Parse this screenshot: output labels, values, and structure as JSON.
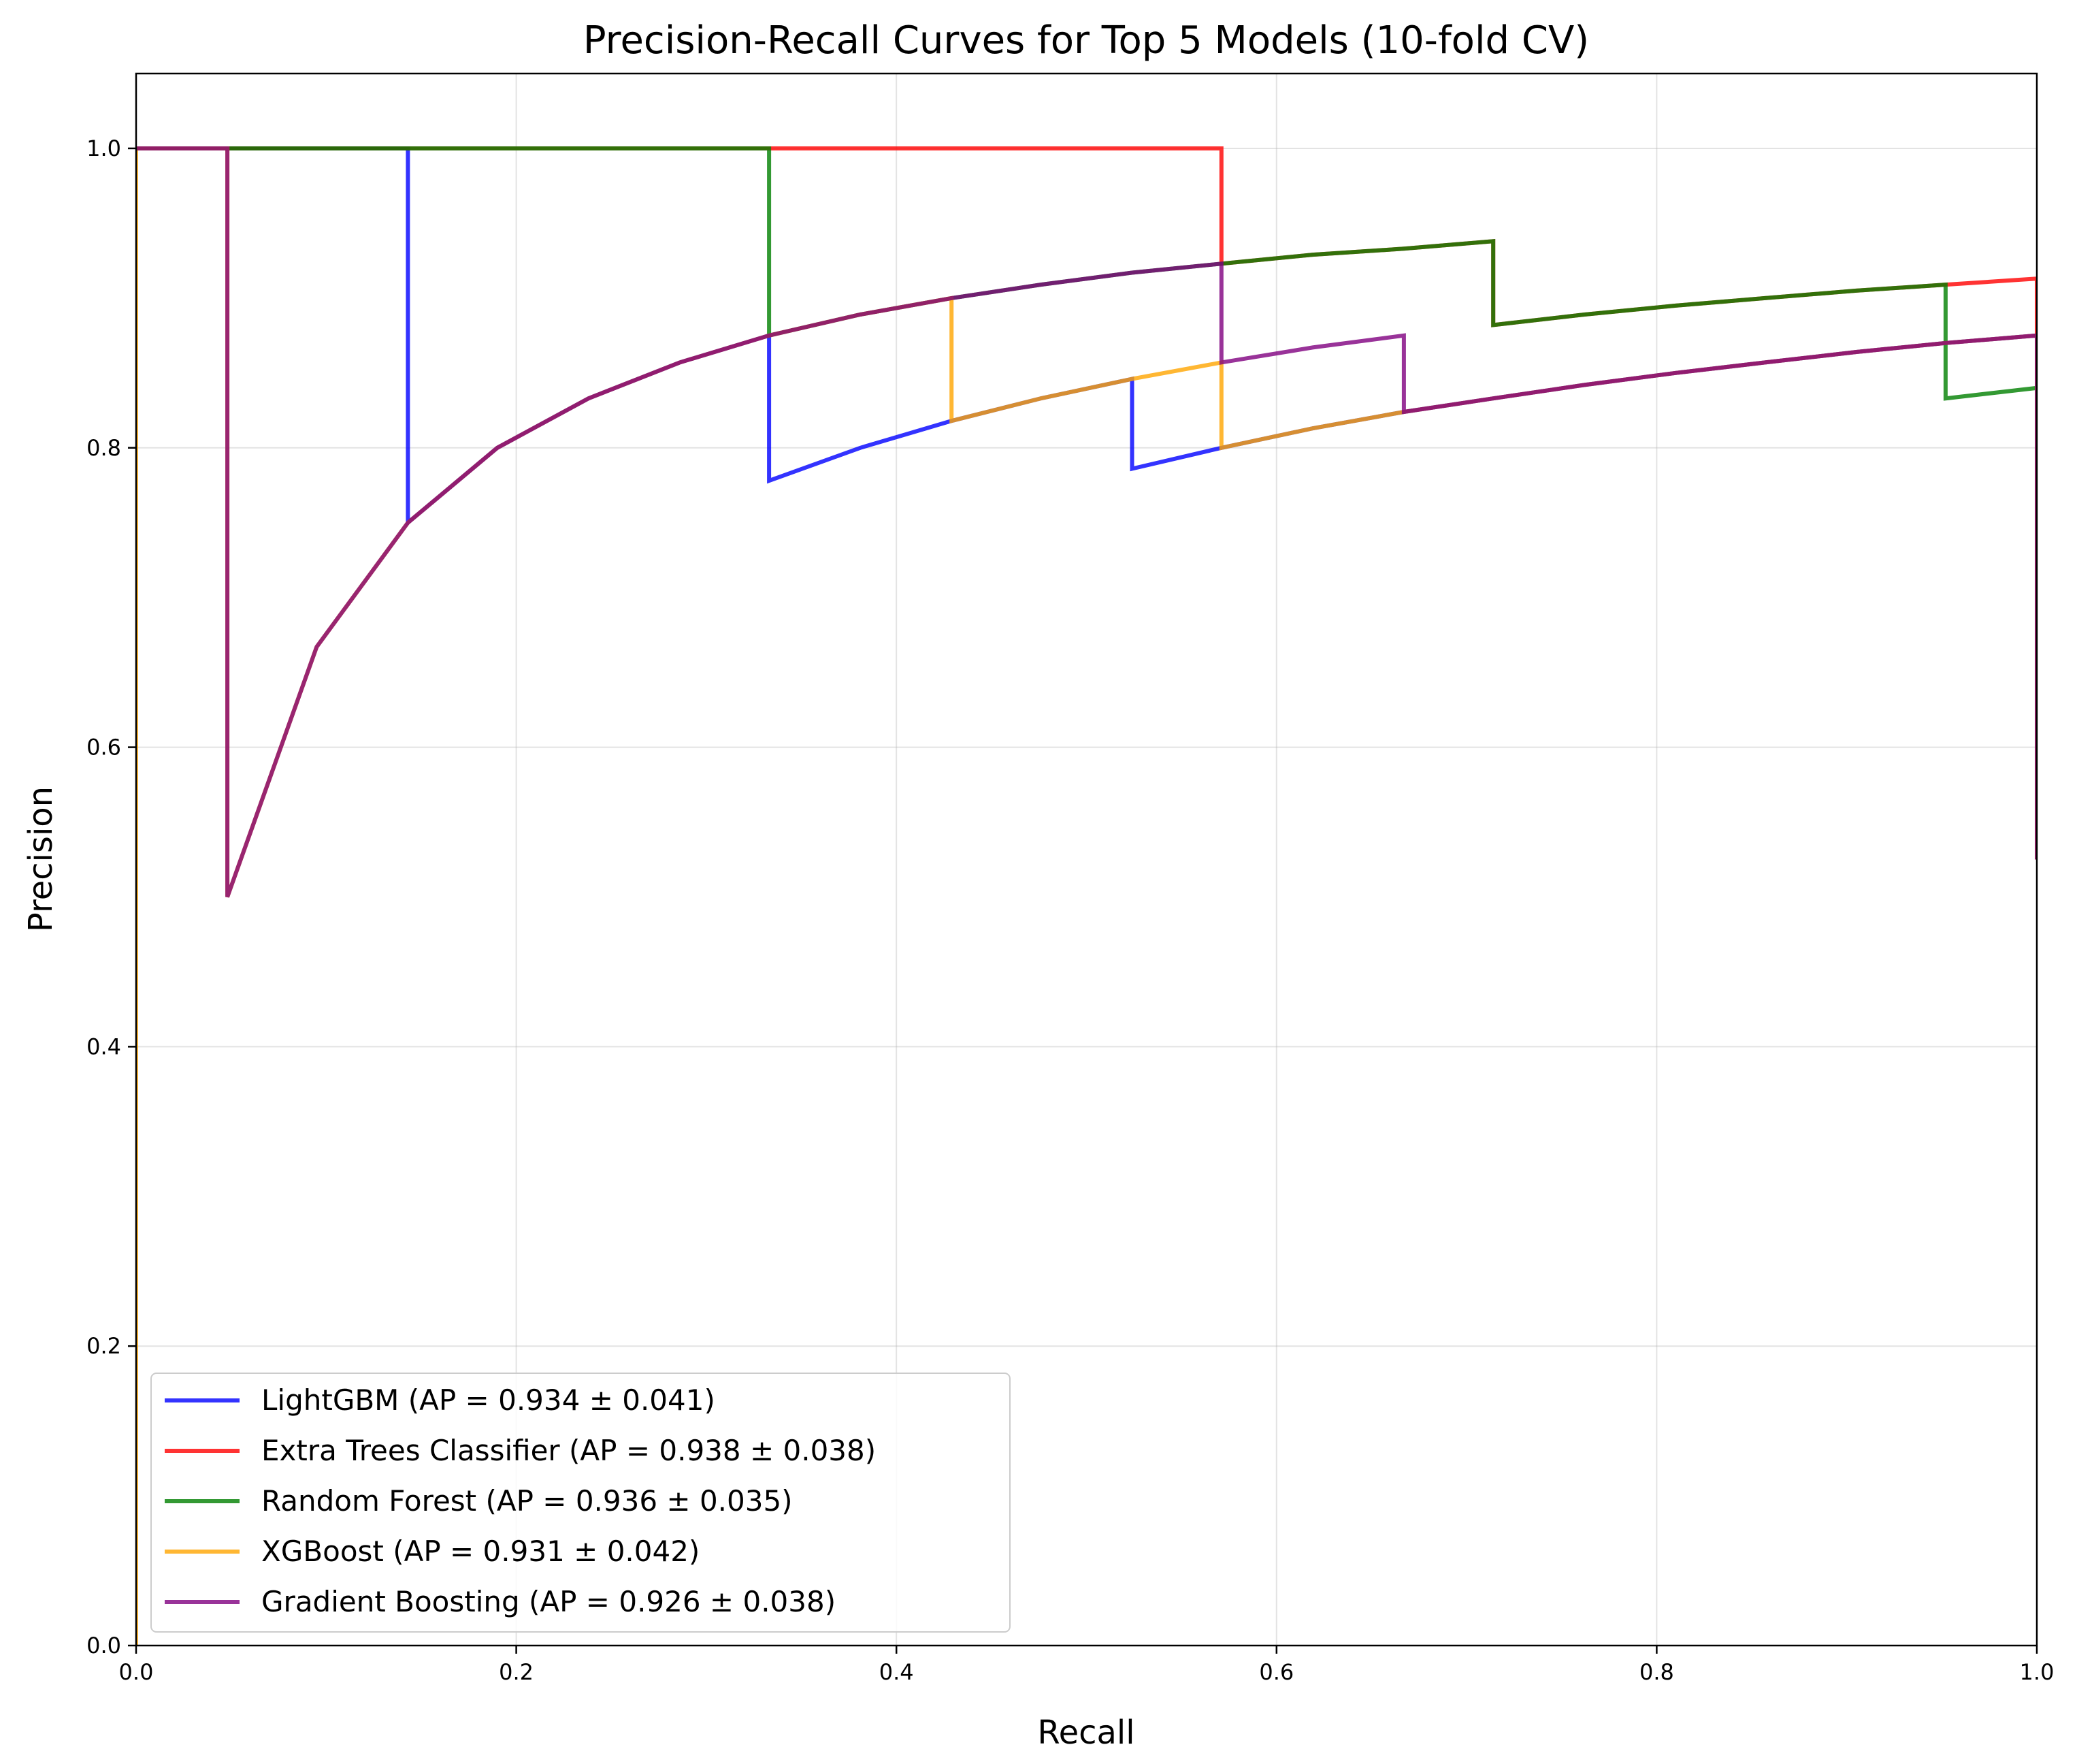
{
  "chart_data": {
    "type": "line",
    "title": "Precision-Recall Curves for Top 5 Models (10-fold CV)",
    "xlabel": "Recall",
    "ylabel": "Precision",
    "xlim": [
      0,
      1
    ],
    "ylim": [
      0,
      1.05
    ],
    "xticks": [
      0.0,
      0.2,
      0.4,
      0.6,
      0.8,
      1.0
    ],
    "yticks": [
      0.0,
      0.2,
      0.4,
      0.6,
      0.8,
      1.0
    ],
    "xtick_labels": [
      "0.0",
      "0.2",
      "0.4",
      "0.6",
      "0.8",
      "1.0"
    ],
    "ytick_labels": [
      "0.0",
      "0.2",
      "0.4",
      "0.6",
      "0.8",
      "1.0"
    ],
    "grid": true,
    "legend_position": "lower-left",
    "series": [
      {
        "name": "LightGBM (AP = 0.934 ± 0.041)",
        "color": "#0000ff",
        "points": [
          [
            0,
            1.0
          ],
          [
            0.143,
            1.0
          ],
          [
            0.143,
            0.75
          ],
          [
            0.19,
            0.8
          ],
          [
            0.238,
            0.833
          ],
          [
            0.286,
            0.857
          ],
          [
            0.333,
            0.875
          ],
          [
            0.333,
            0.778
          ],
          [
            0.381,
            0.8
          ],
          [
            0.429,
            0.818
          ],
          [
            0.476,
            0.833
          ],
          [
            0.524,
            0.846
          ],
          [
            0.524,
            0.786
          ],
          [
            0.571,
            0.8
          ],
          [
            0.619,
            0.813
          ],
          [
            0.667,
            0.824
          ],
          [
            0.714,
            0.833
          ],
          [
            0.762,
            0.842
          ],
          [
            0.81,
            0.85
          ],
          [
            0.857,
            0.857
          ],
          [
            0.905,
            0.864
          ],
          [
            0.952,
            0.87
          ],
          [
            1.0,
            0.875
          ],
          [
            1.0,
            0.525
          ]
        ]
      },
      {
        "name": "Extra Trees Classifier (AP = 0.938 ± 0.038)",
        "color": "#ff0000",
        "points": [
          [
            0,
            1.0
          ],
          [
            0.571,
            1.0
          ],
          [
            0.571,
            0.923
          ],
          [
            0.619,
            0.929
          ],
          [
            0.667,
            0.933
          ],
          [
            0.714,
            0.938
          ],
          [
            0.714,
            0.882
          ],
          [
            0.762,
            0.889
          ],
          [
            0.81,
            0.895
          ],
          [
            0.857,
            0.9
          ],
          [
            0.905,
            0.905
          ],
          [
            0.952,
            0.909
          ],
          [
            1.0,
            0.913
          ],
          [
            1.0,
            0.525
          ]
        ]
      },
      {
        "name": "Random Forest (AP = 0.936 ± 0.035)",
        "color": "#008000",
        "points": [
          [
            0,
            1.0
          ],
          [
            0.333,
            1.0
          ],
          [
            0.333,
            0.875
          ],
          [
            0.381,
            0.889
          ],
          [
            0.429,
            0.9
          ],
          [
            0.476,
            0.909
          ],
          [
            0.524,
            0.917
          ],
          [
            0.571,
            0.923
          ],
          [
            0.619,
            0.929
          ],
          [
            0.667,
            0.933
          ],
          [
            0.714,
            0.938
          ],
          [
            0.714,
            0.882
          ],
          [
            0.762,
            0.889
          ],
          [
            0.81,
            0.895
          ],
          [
            0.857,
            0.9
          ],
          [
            0.905,
            0.905
          ],
          [
            0.952,
            0.909
          ],
          [
            0.952,
            0.833
          ],
          [
            1.0,
            0.84
          ],
          [
            1.0,
            0.525
          ]
        ]
      },
      {
        "name": "XGBoost (AP = 0.931 ± 0.042)",
        "color": "#ffa500",
        "points": [
          [
            0,
            0.0
          ],
          [
            0,
            1.0
          ],
          [
            0.048,
            1.0
          ],
          [
            0.048,
            0.5
          ],
          [
            0.095,
            0.667
          ],
          [
            0.143,
            0.75
          ],
          [
            0.19,
            0.8
          ],
          [
            0.238,
            0.833
          ],
          [
            0.286,
            0.857
          ],
          [
            0.333,
            0.875
          ],
          [
            0.381,
            0.889
          ],
          [
            0.429,
            0.9
          ],
          [
            0.429,
            0.818
          ],
          [
            0.476,
            0.833
          ],
          [
            0.524,
            0.846
          ],
          [
            0.571,
            0.857
          ],
          [
            0.571,
            0.8
          ],
          [
            0.619,
            0.813
          ],
          [
            0.667,
            0.824
          ],
          [
            0.714,
            0.833
          ],
          [
            0.762,
            0.842
          ],
          [
            0.81,
            0.85
          ],
          [
            0.857,
            0.857
          ],
          [
            0.905,
            0.864
          ],
          [
            0.952,
            0.87
          ],
          [
            1.0,
            0.875
          ],
          [
            1.0,
            0.525
          ]
        ]
      },
      {
        "name": "Gradient Boosting (AP = 0.926 ± 0.038)",
        "color": "#800080",
        "points": [
          [
            0,
            1.0
          ],
          [
            0.048,
            1.0
          ],
          [
            0.048,
            0.5
          ],
          [
            0.095,
            0.667
          ],
          [
            0.143,
            0.75
          ],
          [
            0.19,
            0.8
          ],
          [
            0.238,
            0.833
          ],
          [
            0.286,
            0.857
          ],
          [
            0.333,
            0.875
          ],
          [
            0.381,
            0.889
          ],
          [
            0.429,
            0.9
          ],
          [
            0.476,
            0.909
          ],
          [
            0.524,
            0.917
          ],
          [
            0.571,
            0.923
          ],
          [
            0.571,
            0.857
          ],
          [
            0.619,
            0.867
          ],
          [
            0.667,
            0.875
          ],
          [
            0.667,
            0.824
          ],
          [
            0.714,
            0.833
          ],
          [
            0.762,
            0.842
          ],
          [
            0.81,
            0.85
          ],
          [
            0.857,
            0.857
          ],
          [
            0.905,
            0.864
          ],
          [
            0.952,
            0.87
          ],
          [
            1.0,
            0.875
          ],
          [
            1.0,
            0.525
          ]
        ]
      }
    ]
  }
}
